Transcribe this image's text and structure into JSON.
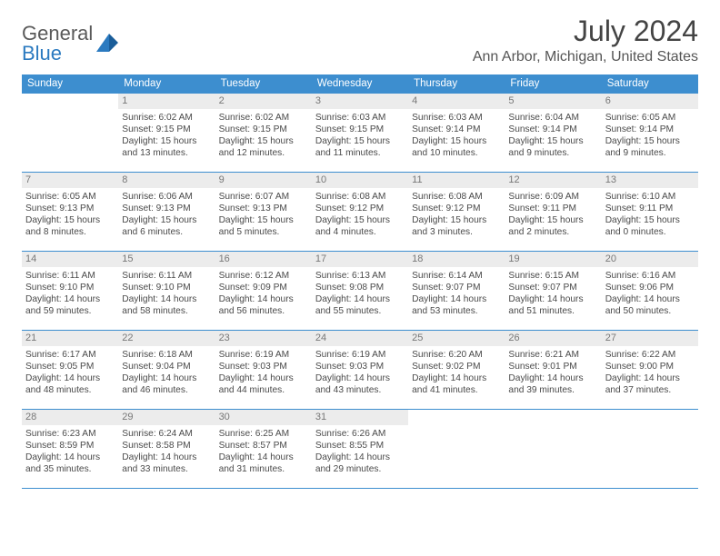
{
  "brand": {
    "part1": "General",
    "part2": "Blue"
  },
  "title": "July 2024",
  "location": "Ann Arbor, Michigan, United States",
  "colors": {
    "header_bg": "#3d8ecf",
    "header_text": "#ffffff",
    "daynum_bg": "#ececec",
    "daynum_text": "#777777",
    "divider": "#3d8ecf",
    "logo_blue": "#2b7ac0",
    "logo_grey": "#5a5a5a",
    "body_text": "#4a4a4a"
  },
  "weekdays": [
    "Sunday",
    "Monday",
    "Tuesday",
    "Wednesday",
    "Thursday",
    "Friday",
    "Saturday"
  ],
  "weeks": [
    [
      null,
      {
        "n": "1",
        "sr": "6:02 AM",
        "ss": "9:15 PM",
        "dl1": "Daylight: 15 hours",
        "dl2": "and 13 minutes."
      },
      {
        "n": "2",
        "sr": "6:02 AM",
        "ss": "9:15 PM",
        "dl1": "Daylight: 15 hours",
        "dl2": "and 12 minutes."
      },
      {
        "n": "3",
        "sr": "6:03 AM",
        "ss": "9:15 PM",
        "dl1": "Daylight: 15 hours",
        "dl2": "and 11 minutes."
      },
      {
        "n": "4",
        "sr": "6:03 AM",
        "ss": "9:14 PM",
        "dl1": "Daylight: 15 hours",
        "dl2": "and 10 minutes."
      },
      {
        "n": "5",
        "sr": "6:04 AM",
        "ss": "9:14 PM",
        "dl1": "Daylight: 15 hours",
        "dl2": "and 9 minutes."
      },
      {
        "n": "6",
        "sr": "6:05 AM",
        "ss": "9:14 PM",
        "dl1": "Daylight: 15 hours",
        "dl2": "and 9 minutes."
      }
    ],
    [
      {
        "n": "7",
        "sr": "6:05 AM",
        "ss": "9:13 PM",
        "dl1": "Daylight: 15 hours",
        "dl2": "and 8 minutes."
      },
      {
        "n": "8",
        "sr": "6:06 AM",
        "ss": "9:13 PM",
        "dl1": "Daylight: 15 hours",
        "dl2": "and 6 minutes."
      },
      {
        "n": "9",
        "sr": "6:07 AM",
        "ss": "9:13 PM",
        "dl1": "Daylight: 15 hours",
        "dl2": "and 5 minutes."
      },
      {
        "n": "10",
        "sr": "6:08 AM",
        "ss": "9:12 PM",
        "dl1": "Daylight: 15 hours",
        "dl2": "and 4 minutes."
      },
      {
        "n": "11",
        "sr": "6:08 AM",
        "ss": "9:12 PM",
        "dl1": "Daylight: 15 hours",
        "dl2": "and 3 minutes."
      },
      {
        "n": "12",
        "sr": "6:09 AM",
        "ss": "9:11 PM",
        "dl1": "Daylight: 15 hours",
        "dl2": "and 2 minutes."
      },
      {
        "n": "13",
        "sr": "6:10 AM",
        "ss": "9:11 PM",
        "dl1": "Daylight: 15 hours",
        "dl2": "and 0 minutes."
      }
    ],
    [
      {
        "n": "14",
        "sr": "6:11 AM",
        "ss": "9:10 PM",
        "dl1": "Daylight: 14 hours",
        "dl2": "and 59 minutes."
      },
      {
        "n": "15",
        "sr": "6:11 AM",
        "ss": "9:10 PM",
        "dl1": "Daylight: 14 hours",
        "dl2": "and 58 minutes."
      },
      {
        "n": "16",
        "sr": "6:12 AM",
        "ss": "9:09 PM",
        "dl1": "Daylight: 14 hours",
        "dl2": "and 56 minutes."
      },
      {
        "n": "17",
        "sr": "6:13 AM",
        "ss": "9:08 PM",
        "dl1": "Daylight: 14 hours",
        "dl2": "and 55 minutes."
      },
      {
        "n": "18",
        "sr": "6:14 AM",
        "ss": "9:07 PM",
        "dl1": "Daylight: 14 hours",
        "dl2": "and 53 minutes."
      },
      {
        "n": "19",
        "sr": "6:15 AM",
        "ss": "9:07 PM",
        "dl1": "Daylight: 14 hours",
        "dl2": "and 51 minutes."
      },
      {
        "n": "20",
        "sr": "6:16 AM",
        "ss": "9:06 PM",
        "dl1": "Daylight: 14 hours",
        "dl2": "and 50 minutes."
      }
    ],
    [
      {
        "n": "21",
        "sr": "6:17 AM",
        "ss": "9:05 PM",
        "dl1": "Daylight: 14 hours",
        "dl2": "and 48 minutes."
      },
      {
        "n": "22",
        "sr": "6:18 AM",
        "ss": "9:04 PM",
        "dl1": "Daylight: 14 hours",
        "dl2": "and 46 minutes."
      },
      {
        "n": "23",
        "sr": "6:19 AM",
        "ss": "9:03 PM",
        "dl1": "Daylight: 14 hours",
        "dl2": "and 44 minutes."
      },
      {
        "n": "24",
        "sr": "6:19 AM",
        "ss": "9:03 PM",
        "dl1": "Daylight: 14 hours",
        "dl2": "and 43 minutes."
      },
      {
        "n": "25",
        "sr": "6:20 AM",
        "ss": "9:02 PM",
        "dl1": "Daylight: 14 hours",
        "dl2": "and 41 minutes."
      },
      {
        "n": "26",
        "sr": "6:21 AM",
        "ss": "9:01 PM",
        "dl1": "Daylight: 14 hours",
        "dl2": "and 39 minutes."
      },
      {
        "n": "27",
        "sr": "6:22 AM",
        "ss": "9:00 PM",
        "dl1": "Daylight: 14 hours",
        "dl2": "and 37 minutes."
      }
    ],
    [
      {
        "n": "28",
        "sr": "6:23 AM",
        "ss": "8:59 PM",
        "dl1": "Daylight: 14 hours",
        "dl2": "and 35 minutes."
      },
      {
        "n": "29",
        "sr": "6:24 AM",
        "ss": "8:58 PM",
        "dl1": "Daylight: 14 hours",
        "dl2": "and 33 minutes."
      },
      {
        "n": "30",
        "sr": "6:25 AM",
        "ss": "8:57 PM",
        "dl1": "Daylight: 14 hours",
        "dl2": "and 31 minutes."
      },
      {
        "n": "31",
        "sr": "6:26 AM",
        "ss": "8:55 PM",
        "dl1": "Daylight: 14 hours",
        "dl2": "and 29 minutes."
      },
      null,
      null,
      null
    ]
  ],
  "labels": {
    "sunrise": "Sunrise:",
    "sunset": "Sunset:"
  }
}
